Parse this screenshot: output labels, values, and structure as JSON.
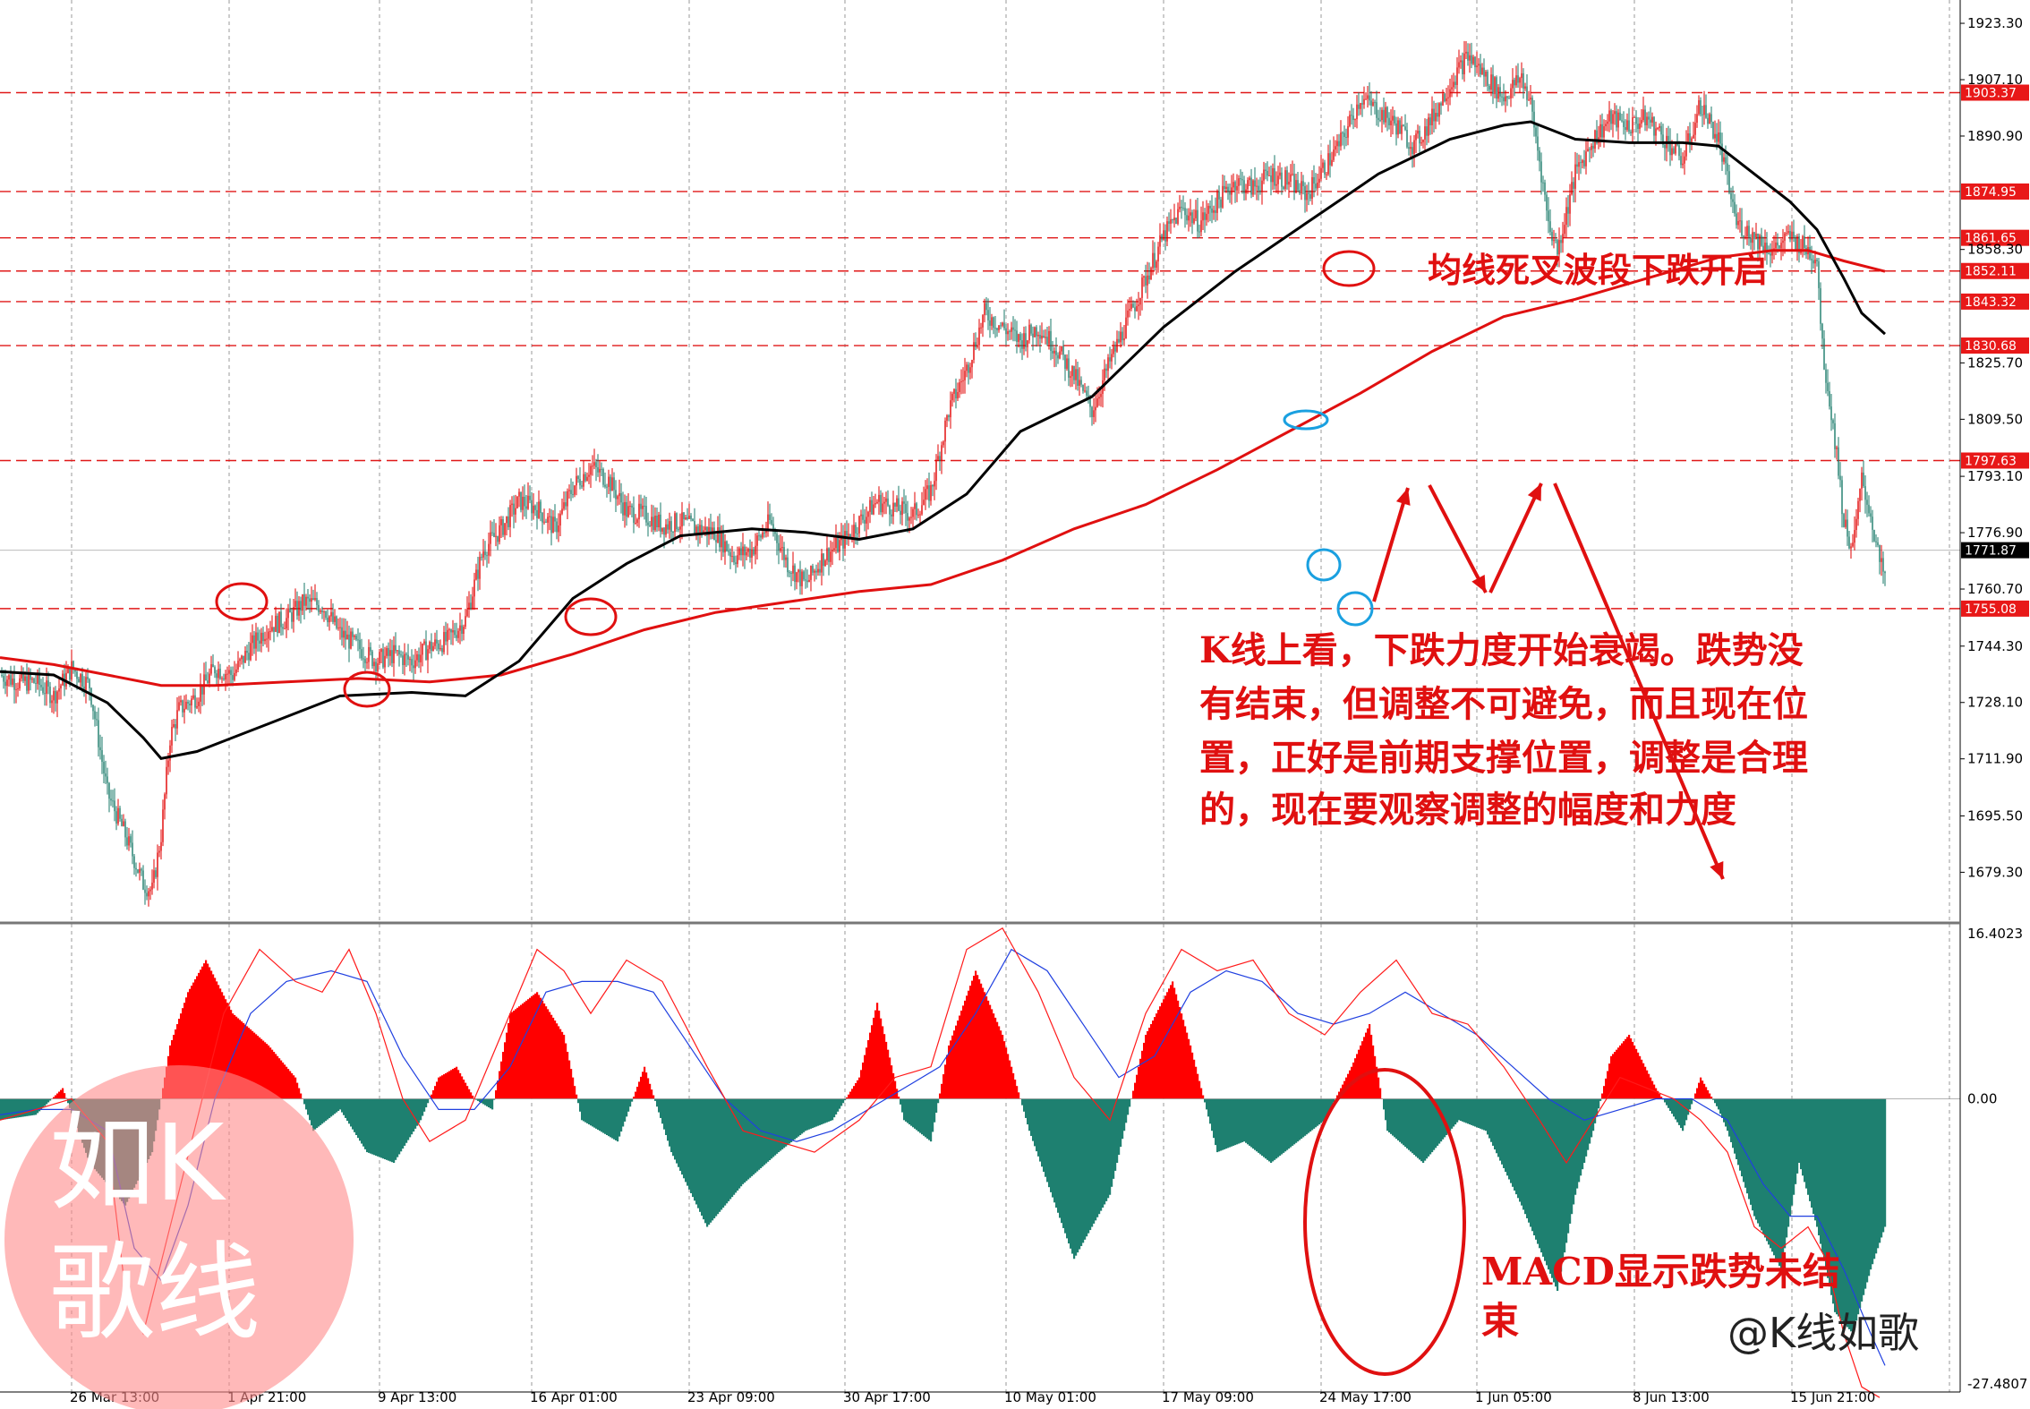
{
  "chart_data": {
    "type": "candlestick",
    "price_axis": {
      "ticks": [
        "1923.30",
        "1907.10",
        "1890.90",
        "1858.30",
        "1825.70",
        "1809.50",
        "1793.10",
        "1776.90",
        "1760.70",
        "1744.30",
        "1728.10",
        "1711.90",
        "1695.50",
        "1679.30"
      ],
      "ylim": [
        1665,
        1930
      ]
    },
    "macd_axis": {
      "ticks": [
        "16.4023",
        "0.00",
        "-27.4807"
      ],
      "ylim": [
        -27.4807,
        16.4023
      ]
    },
    "date_ticks": [
      "26 Mar 13:00",
      "1 Apr 21:00",
      "9 Apr 13:00",
      "16 Apr 01:00",
      "23 Apr 09:00",
      "30 Apr 17:00",
      "10 May 01:00",
      "17 May 09:00",
      "24 May 17:00",
      "1 Jun 05:00",
      "8 Jun 13:00",
      "15 Jun 21:00"
    ],
    "levels": [
      {
        "label": "1903.37",
        "value": 1903.37
      },
      {
        "label": "1874.95",
        "value": 1874.95
      },
      {
        "label": "1861.65",
        "value": 1861.65
      },
      {
        "label": "1852.11",
        "value": 1852.11
      },
      {
        "label": "1843.32",
        "value": 1843.32
      },
      {
        "label": "1830.68",
        "value": 1830.68
      },
      {
        "label": "1797.63",
        "value": 1797.63
      },
      {
        "label": "1755.08",
        "value": 1755.08
      }
    ],
    "current_price": {
      "label": "1771.87",
      "value": 1771.87
    },
    "close_path": [
      [
        0,
        1736
      ],
      [
        10,
        1734
      ],
      [
        20,
        1734
      ],
      [
        30,
        1730
      ],
      [
        40,
        1738
      ],
      [
        50,
        1733
      ],
      [
        60,
        1702
      ],
      [
        70,
        1690
      ],
      [
        80,
        1676
      ],
      [
        85,
        1674
      ],
      [
        90,
        1690
      ],
      [
        95,
        1718
      ],
      [
        100,
        1726
      ],
      [
        110,
        1730
      ],
      [
        120,
        1738
      ],
      [
        130,
        1736
      ],
      [
        140,
        1744
      ],
      [
        150,
        1750
      ],
      [
        160,
        1752
      ],
      [
        170,
        1757
      ],
      [
        180,
        1756
      ],
      [
        190,
        1748
      ],
      [
        200,
        1744
      ],
      [
        210,
        1740
      ],
      [
        220,
        1742
      ],
      [
        230,
        1740
      ],
      [
        240,
        1744
      ],
      [
        250,
        1746
      ],
      [
        260,
        1752
      ],
      [
        270,
        1772
      ],
      [
        280,
        1778
      ],
      [
        290,
        1786
      ],
      [
        300,
        1784
      ],
      [
        310,
        1778
      ],
      [
        320,
        1790
      ],
      [
        330,
        1796
      ],
      [
        340,
        1792
      ],
      [
        350,
        1783
      ],
      [
        360,
        1782
      ],
      [
        370,
        1779
      ],
      [
        380,
        1780
      ],
      [
        390,
        1778
      ],
      [
        400,
        1777
      ],
      [
        410,
        1770
      ],
      [
        420,
        1772
      ],
      [
        430,
        1780
      ],
      [
        440,
        1768
      ],
      [
        450,
        1762
      ],
      [
        460,
        1770
      ],
      [
        470,
        1774
      ],
      [
        480,
        1780
      ],
      [
        490,
        1786
      ],
      [
        500,
        1784
      ],
      [
        510,
        1782
      ],
      [
        520,
        1789
      ],
      [
        530,
        1812
      ],
      [
        540,
        1824
      ],
      [
        550,
        1840
      ],
      [
        560,
        1836
      ],
      [
        570,
        1832
      ],
      [
        580,
        1836
      ],
      [
        590,
        1830
      ],
      [
        600,
        1822
      ],
      [
        610,
        1812
      ],
      [
        620,
        1826
      ],
      [
        630,
        1838
      ],
      [
        640,
        1850
      ],
      [
        650,
        1862
      ],
      [
        660,
        1870
      ],
      [
        670,
        1866
      ],
      [
        680,
        1872
      ],
      [
        690,
        1878
      ],
      [
        700,
        1876
      ],
      [
        710,
        1880
      ],
      [
        720,
        1878
      ],
      [
        730,
        1874
      ],
      [
        740,
        1882
      ],
      [
        750,
        1890
      ],
      [
        760,
        1902
      ],
      [
        770,
        1898
      ],
      [
        780,
        1894
      ],
      [
        790,
        1888
      ],
      [
        800,
        1896
      ],
      [
        810,
        1906
      ],
      [
        820,
        1914
      ],
      [
        830,
        1908
      ],
      [
        840,
        1902
      ],
      [
        850,
        1908
      ],
      [
        855,
        1900
      ],
      [
        860,
        1884
      ],
      [
        865,
        1866
      ],
      [
        870,
        1858
      ],
      [
        880,
        1880
      ],
      [
        890,
        1890
      ],
      [
        900,
        1896
      ],
      [
        910,
        1894
      ],
      [
        920,
        1896
      ],
      [
        930,
        1890
      ],
      [
        940,
        1884
      ],
      [
        950,
        1900
      ],
      [
        960,
        1890
      ],
      [
        965,
        1878
      ],
      [
        970,
        1866
      ],
      [
        980,
        1862
      ],
      [
        990,
        1858
      ],
      [
        1000,
        1862
      ],
      [
        1010,
        1858
      ],
      [
        1015,
        1856
      ],
      [
        1018,
        1830
      ],
      [
        1022,
        1815
      ],
      [
        1026,
        1800
      ],
      [
        1030,
        1780
      ],
      [
        1035,
        1772
      ],
      [
        1040,
        1792
      ],
      [
        1045,
        1782
      ],
      [
        1050,
        1768
      ],
      [
        1053,
        1764
      ]
    ],
    "ma_black": [
      [
        0,
        1737
      ],
      [
        30,
        1736
      ],
      [
        60,
        1728
      ],
      [
        80,
        1718
      ],
      [
        90,
        1712
      ],
      [
        110,
        1714
      ],
      [
        150,
        1722
      ],
      [
        190,
        1730
      ],
      [
        230,
        1731
      ],
      [
        260,
        1730
      ],
      [
        290,
        1740
      ],
      [
        320,
        1758
      ],
      [
        350,
        1768
      ],
      [
        380,
        1776
      ],
      [
        420,
        1778
      ],
      [
        450,
        1777
      ],
      [
        480,
        1775
      ],
      [
        510,
        1778
      ],
      [
        540,
        1788
      ],
      [
        570,
        1806
      ],
      [
        610,
        1816
      ],
      [
        650,
        1836
      ],
      [
        690,
        1852
      ],
      [
        730,
        1866
      ],
      [
        770,
        1880
      ],
      [
        810,
        1890
      ],
      [
        840,
        1894
      ],
      [
        855,
        1895
      ],
      [
        880,
        1890
      ],
      [
        910,
        1889
      ],
      [
        940,
        1889
      ],
      [
        960,
        1888
      ],
      [
        980,
        1880
      ],
      [
        1000,
        1872
      ],
      [
        1015,
        1864
      ],
      [
        1030,
        1850
      ],
      [
        1040,
        1840
      ],
      [
        1053,
        1834
      ]
    ],
    "ma_red": [
      [
        0,
        1741
      ],
      [
        30,
        1739
      ],
      [
        60,
        1736
      ],
      [
        90,
        1733
      ],
      [
        120,
        1733
      ],
      [
        160,
        1734
      ],
      [
        200,
        1735
      ],
      [
        240,
        1734
      ],
      [
        280,
        1736
      ],
      [
        320,
        1742
      ],
      [
        360,
        1749
      ],
      [
        400,
        1754
      ],
      [
        440,
        1757
      ],
      [
        480,
        1760
      ],
      [
        520,
        1762
      ],
      [
        560,
        1769
      ],
      [
        600,
        1778
      ],
      [
        640,
        1785
      ],
      [
        680,
        1795
      ],
      [
        720,
        1806
      ],
      [
        760,
        1817
      ],
      [
        800,
        1829
      ],
      [
        840,
        1839
      ],
      [
        880,
        1844
      ],
      [
        920,
        1850
      ],
      [
        960,
        1856
      ],
      [
        990,
        1858
      ],
      [
        1010,
        1858
      ],
      [
        1030,
        1855
      ],
      [
        1053,
        1852
      ]
    ],
    "macd_hist_path": [
      [
        0,
        -2
      ],
      [
        20,
        -1.5
      ],
      [
        35,
        1
      ],
      [
        50,
        -6
      ],
      [
        70,
        -10
      ],
      [
        85,
        -5
      ],
      [
        95,
        5
      ],
      [
        105,
        10
      ],
      [
        115,
        13
      ],
      [
        130,
        8
      ],
      [
        150,
        5
      ],
      [
        165,
        2
      ],
      [
        175,
        -3
      ],
      [
        190,
        -1
      ],
      [
        205,
        -5
      ],
      [
        220,
        -6
      ],
      [
        235,
        -2
      ],
      [
        245,
        2
      ],
      [
        255,
        3
      ],
      [
        265,
        0
      ],
      [
        275,
        -1
      ],
      [
        285,
        8
      ],
      [
        300,
        10
      ],
      [
        315,
        6
      ],
      [
        325,
        -2
      ],
      [
        345,
        -4
      ],
      [
        360,
        3
      ],
      [
        375,
        -5
      ],
      [
        395,
        -12
      ],
      [
        415,
        -8
      ],
      [
        435,
        -5
      ],
      [
        450,
        -3
      ],
      [
        465,
        -2
      ],
      [
        480,
        2
      ],
      [
        490,
        9
      ],
      [
        505,
        -2
      ],
      [
        520,
        -4
      ],
      [
        530,
        5
      ],
      [
        545,
        12
      ],
      [
        560,
        6
      ],
      [
        575,
        -3
      ],
      [
        600,
        -15
      ],
      [
        620,
        -9
      ],
      [
        640,
        6
      ],
      [
        655,
        11
      ],
      [
        665,
        5
      ],
      [
        680,
        -5
      ],
      [
        695,
        -4
      ],
      [
        710,
        -6
      ],
      [
        725,
        -4
      ],
      [
        740,
        -2
      ],
      [
        755,
        3
      ],
      [
        765,
        7
      ],
      [
        775,
        -3
      ],
      [
        795,
        -6
      ],
      [
        815,
        -2
      ],
      [
        830,
        -3
      ],
      [
        850,
        -10
      ],
      [
        870,
        -18
      ],
      [
        880,
        -9
      ],
      [
        890,
        -3
      ],
      [
        900,
        4
      ],
      [
        910,
        6
      ],
      [
        925,
        1
      ],
      [
        940,
        -3
      ],
      [
        950,
        2
      ],
      [
        960,
        -1
      ],
      [
        965,
        -3
      ],
      [
        980,
        -11
      ],
      [
        995,
        -16
      ],
      [
        1005,
        -6
      ],
      [
        1015,
        -12
      ],
      [
        1025,
        -20
      ],
      [
        1035,
        -22
      ],
      [
        1045,
        -16
      ],
      [
        1053,
        -12
      ]
    ],
    "macd_red_path": [
      [
        0,
        -2
      ],
      [
        20,
        -1
      ],
      [
        40,
        0
      ],
      [
        60,
        -4
      ],
      [
        70,
        -18
      ],
      [
        80,
        -22
      ],
      [
        95,
        -12
      ],
      [
        110,
        -2
      ],
      [
        125,
        8
      ],
      [
        145,
        14
      ],
      [
        165,
        11
      ],
      [
        180,
        10
      ],
      [
        195,
        14
      ],
      [
        210,
        8
      ],
      [
        225,
        0
      ],
      [
        240,
        -4
      ],
      [
        260,
        -2
      ],
      [
        280,
        6
      ],
      [
        300,
        14
      ],
      [
        315,
        12
      ],
      [
        330,
        8
      ],
      [
        350,
        13
      ],
      [
        370,
        11
      ],
      [
        395,
        3
      ],
      [
        415,
        -3
      ],
      [
        435,
        -4
      ],
      [
        455,
        -5
      ],
      [
        480,
        -2
      ],
      [
        500,
        2
      ],
      [
        520,
        3
      ],
      [
        540,
        14
      ],
      [
        560,
        16
      ],
      [
        580,
        10
      ],
      [
        600,
        2
      ],
      [
        620,
        -2
      ],
      [
        640,
        8
      ],
      [
        660,
        14
      ],
      [
        680,
        12
      ],
      [
        700,
        13
      ],
      [
        720,
        8
      ],
      [
        740,
        6
      ],
      [
        760,
        10
      ],
      [
        780,
        13
      ],
      [
        800,
        8
      ],
      [
        820,
        7
      ],
      [
        840,
        3
      ],
      [
        860,
        -2
      ],
      [
        875,
        -6
      ],
      [
        890,
        -2
      ],
      [
        905,
        2
      ],
      [
        920,
        1
      ],
      [
        935,
        0
      ],
      [
        950,
        -2
      ],
      [
        965,
        -5
      ],
      [
        980,
        -12
      ],
      [
        995,
        -14
      ],
      [
        1010,
        -12
      ],
      [
        1020,
        -15
      ],
      [
        1030,
        -22
      ],
      [
        1040,
        -27
      ],
      [
        1050,
        -28
      ]
    ],
    "macd_blue_path": [
      [
        0,
        -1.5
      ],
      [
        20,
        -1
      ],
      [
        40,
        -1
      ],
      [
        60,
        -3
      ],
      [
        75,
        -14
      ],
      [
        90,
        -17
      ],
      [
        105,
        -10
      ],
      [
        120,
        0
      ],
      [
        140,
        8
      ],
      [
        160,
        11
      ],
      [
        185,
        12
      ],
      [
        205,
        11
      ],
      [
        225,
        4
      ],
      [
        245,
        -1
      ],
      [
        265,
        -1
      ],
      [
        285,
        3
      ],
      [
        305,
        10
      ],
      [
        325,
        11
      ],
      [
        345,
        11
      ],
      [
        365,
        10
      ],
      [
        385,
        5
      ],
      [
        405,
        0
      ],
      [
        425,
        -3
      ],
      [
        445,
        -4
      ],
      [
        465,
        -3
      ],
      [
        485,
        -1
      ],
      [
        505,
        1
      ],
      [
        525,
        3
      ],
      [
        545,
        8
      ],
      [
        565,
        14
      ],
      [
        585,
        12
      ],
      [
        605,
        7
      ],
      [
        625,
        2
      ],
      [
        645,
        4
      ],
      [
        665,
        10
      ],
      [
        685,
        12
      ],
      [
        705,
        11
      ],
      [
        725,
        8
      ],
      [
        745,
        7
      ],
      [
        765,
        8
      ],
      [
        785,
        10
      ],
      [
        805,
        8
      ],
      [
        825,
        6
      ],
      [
        845,
        3
      ],
      [
        865,
        0
      ],
      [
        885,
        -2
      ],
      [
        905,
        -1
      ],
      [
        925,
        0
      ],
      [
        945,
        0
      ],
      [
        965,
        -2
      ],
      [
        985,
        -8
      ],
      [
        1000,
        -11
      ],
      [
        1015,
        -11
      ],
      [
        1030,
        -16
      ],
      [
        1045,
        -22
      ],
      [
        1053,
        -25
      ]
    ]
  },
  "annotations": {
    "cross_text": "均线死叉波段下跌开启",
    "kline_text": [
      "K线上看，下跌力度开始衰竭。跌势没",
      "有结束，但调整不可避免，而且现在位",
      "置，正好是前期支撑位置，调整是合理",
      "的，现在要观察调整的幅度和力度"
    ],
    "macd_text": [
      "MACD显示跌势未结",
      "束"
    ]
  },
  "watermark": {
    "line1": "如K",
    "line2": "歌线"
  },
  "brand": {
    "text": "@K线如歌"
  },
  "colors": {
    "bull": "#e00000",
    "bear": "#1a7a6a",
    "ma_short": "#000000",
    "ma_long": "#e01010",
    "level_line": "#e01818",
    "annot": "#e01010",
    "ring_blue": "#1aa0e0",
    "hist_pos": "#ff0000",
    "hist_neg": "#1e8070"
  }
}
